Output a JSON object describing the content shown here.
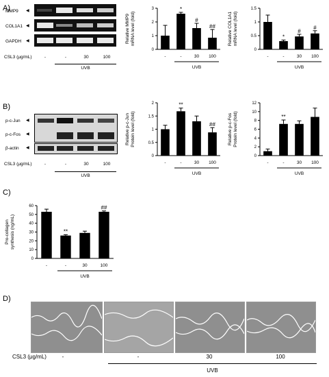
{
  "panels": {
    "A": "A)",
    "B": "B)",
    "C": "C)",
    "D": "D)"
  },
  "blots": {
    "A": {
      "rows": [
        "MMP9",
        "COL1A1",
        "GAPDH"
      ]
    },
    "B": {
      "rows": [
        "p-c-Jun",
        "p-c-Fos",
        "β-actin"
      ]
    }
  },
  "treatment": {
    "label": "CSL3 (μg/mL)",
    "label_D": "CSL3 (μg/mL)",
    "doses": [
      "-",
      "-",
      "30",
      "100"
    ],
    "uvb": "UVB"
  },
  "chart_data": [
    {
      "id": "A-mmp9",
      "type": "bar",
      "categories": [
        "-",
        "-",
        "30",
        "100"
      ],
      "values": [
        1.0,
        2.6,
        1.55,
        0.85
      ],
      "errors": [
        0.75,
        0.1,
        0.35,
        0.6
      ],
      "annotations": [
        "",
        "*",
        "#",
        "##"
      ],
      "ylabel": [
        "Relative MMP9",
        "mRNA level (fold)"
      ],
      "ylim": [
        0,
        3
      ],
      "yticks": [
        0,
        1,
        2,
        3
      ],
      "group_label": "UVB"
    },
    {
      "id": "A-col1a1",
      "type": "bar",
      "categories": [
        "-",
        "-",
        "30",
        "100"
      ],
      "values": [
        1.0,
        0.3,
        0.47,
        0.58
      ],
      "errors": [
        0.25,
        0.04,
        0.08,
        0.1
      ],
      "annotations": [
        "",
        "*",
        "#",
        "#"
      ],
      "ylabel": [
        "Relative COL1A1",
        "mRNA level (fold)"
      ],
      "ylim": [
        0,
        1.5
      ],
      "yticks": [
        0.0,
        0.5,
        1.0,
        1.5
      ],
      "group_label": "UVB"
    },
    {
      "id": "B-cjun",
      "type": "bar",
      "categories": [
        "-",
        "-",
        "30",
        "100"
      ],
      "values": [
        1.0,
        1.68,
        1.3,
        0.88
      ],
      "errors": [
        0.15,
        0.12,
        0.2,
        0.18
      ],
      "annotations": [
        "",
        "**",
        "",
        "##"
      ],
      "ylabel": [
        "Relative p-c-Jun",
        "Protein level (fold)"
      ],
      "ylim": [
        0,
        2.0
      ],
      "yticks": [
        0.0,
        0.5,
        1.0,
        1.5,
        2.0
      ],
      "group_label": "UVB"
    },
    {
      "id": "B-cfos",
      "type": "bar",
      "categories": [
        "-",
        "-",
        "30",
        "100"
      ],
      "values": [
        1.0,
        7.2,
        7.2,
        8.8
      ],
      "errors": [
        0.5,
        0.9,
        0.7,
        2.0
      ],
      "annotations": [
        "",
        "**",
        "",
        ""
      ],
      "ylabel": [
        "Relative p-c-Fos",
        "Protein level (fold)"
      ],
      "ylim": [
        0,
        12
      ],
      "yticks": [
        0,
        2,
        4,
        6,
        8,
        10,
        12
      ],
      "group_label": "UVB"
    },
    {
      "id": "C-procollagen",
      "type": "bar",
      "categories": [
        "-",
        "-",
        "30",
        "100"
      ],
      "values": [
        53,
        26,
        29,
        53
      ],
      "errors": [
        3,
        1,
        2,
        1
      ],
      "annotations": [
        "",
        "**",
        "",
        "##"
      ],
      "ylabel": [
        "Pro-collagen",
        "synthesis (ng/mL)"
      ],
      "ylim": [
        0,
        60
      ],
      "yticks": [
        0,
        10,
        20,
        30,
        40,
        50,
        60
      ],
      "group_label": "UVB"
    }
  ],
  "colors": {
    "bar": "#000000",
    "blot_bg": "#111111",
    "band": "#e8e8e8",
    "wound_bg": "#8f8f8f",
    "wound_line": "#ffffff"
  }
}
